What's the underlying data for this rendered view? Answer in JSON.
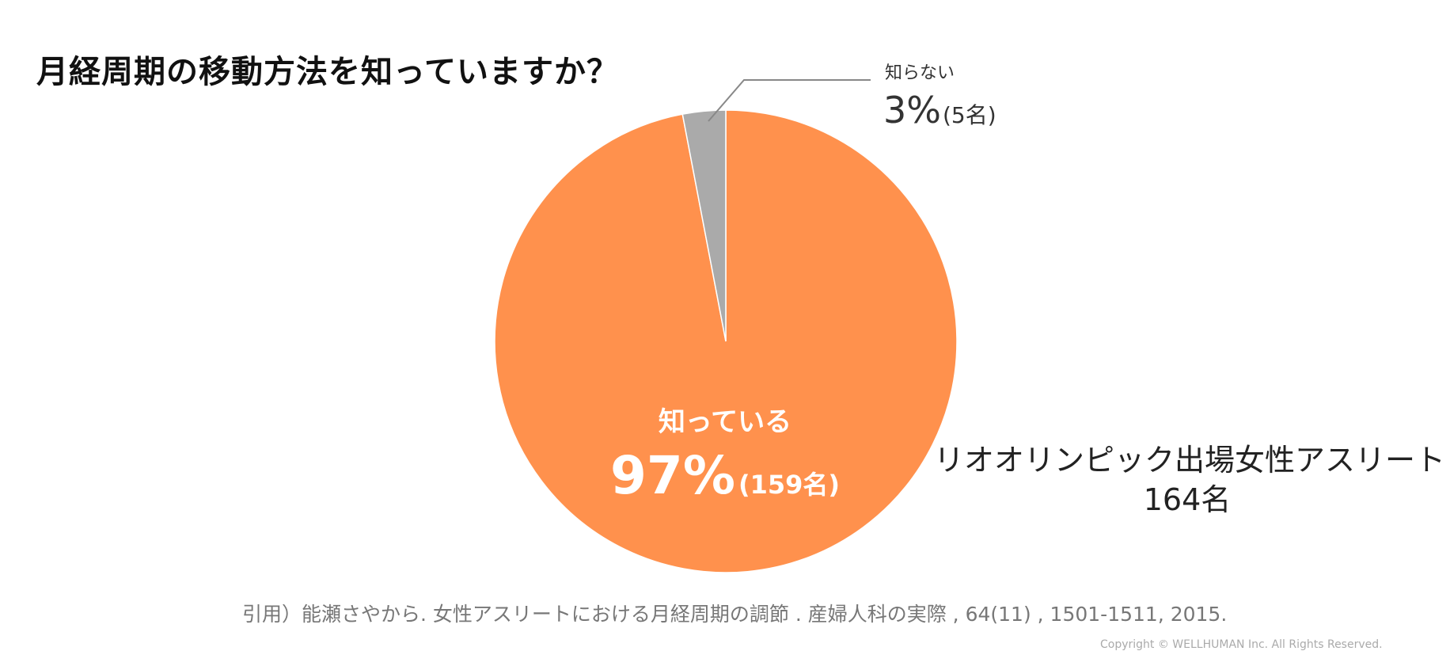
{
  "title": "月経周期の移動方法を知っていますか？",
  "chart_data": {
    "type": "pie",
    "title": "月経周期の移動方法を知っていますか？",
    "slices": [
      {
        "label": "知っている",
        "percent": 97,
        "count": 159,
        "percent_text": "97%",
        "count_text": "(159名)",
        "color": "#FF914D"
      },
      {
        "label": "知らない",
        "percent": 3,
        "count": 5,
        "percent_text": "3%",
        "count_text": "(5名)",
        "color": "#AAAAAA"
      }
    ],
    "legend": "none"
  },
  "sample": {
    "line1": "リオオリンピック出場女性アスリート",
    "line2": "164名"
  },
  "citation": "引用）能瀬さやから. 女性アスリートにおける月経周期の調節 . 産婦人科の実際 , 64(11) , 1501-1511, 2015.",
  "copyright": "Copyright © WELLHUMAN Inc. All Rights Reserved."
}
